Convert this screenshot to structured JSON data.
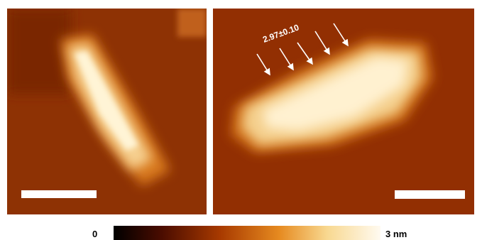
{
  "annotation": "2.97±0.10",
  "colorbar": {
    "min_label": "0",
    "max_label": "3 nm"
  }
}
